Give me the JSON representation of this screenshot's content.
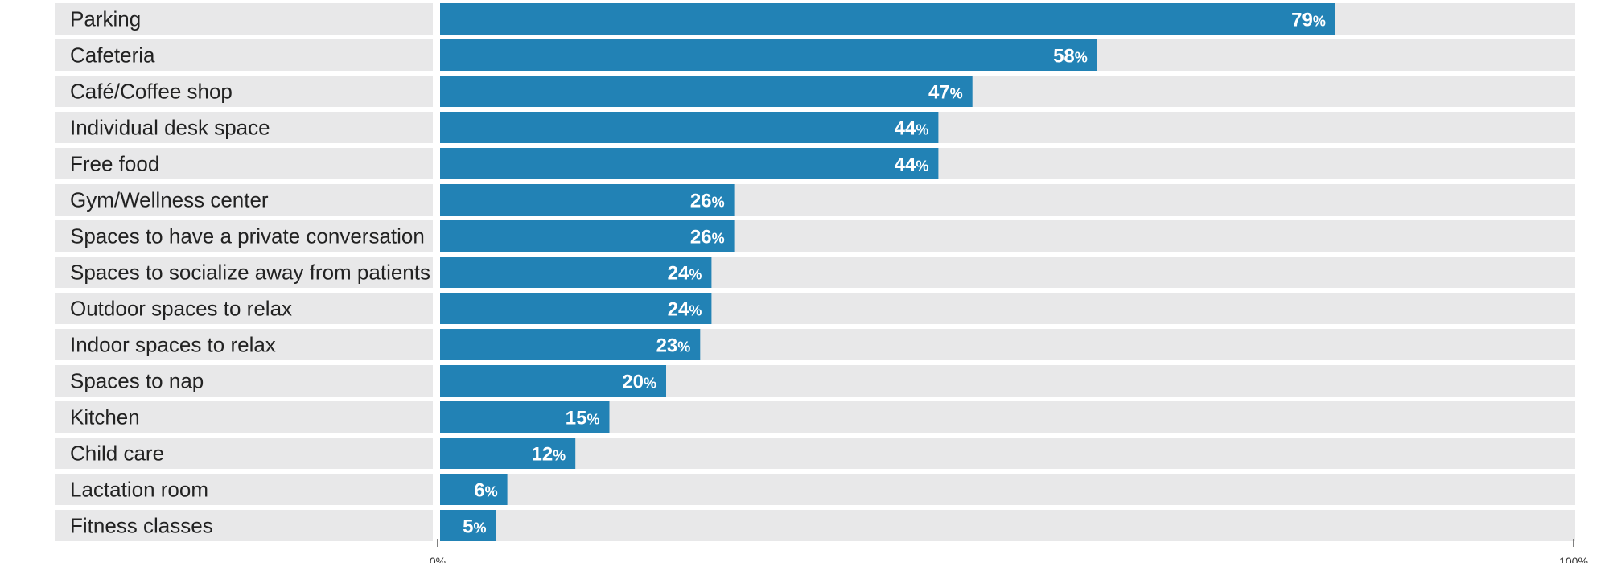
{
  "chart_data": {
    "type": "bar",
    "orientation": "horizontal",
    "categories": [
      "Parking",
      "Cafeteria",
      "Café/Coffee shop",
      "Individual desk space",
      "Free food",
      "Gym/Wellness center",
      "Spaces to have a private conversation",
      "Spaces to socialize away from patients",
      "Outdoor spaces to relax",
      "Indoor spaces to relax",
      "Spaces to nap",
      "Kitchen",
      "Child care",
      "Lactation room",
      "Fitness classes"
    ],
    "values": [
      79,
      58,
      47,
      44,
      44,
      26,
      26,
      24,
      24,
      23,
      20,
      15,
      12,
      6,
      5
    ],
    "value_suffix": "%",
    "xlim": [
      0,
      100
    ],
    "x_ticks": [
      "0%",
      "100%"
    ],
    "grid": false,
    "legend": "none",
    "colors": {
      "bar": "#2282b5",
      "track": "#e8e8e9",
      "label_text": "#222222",
      "value_text": "#ffffff",
      "axis": "#555555"
    }
  }
}
